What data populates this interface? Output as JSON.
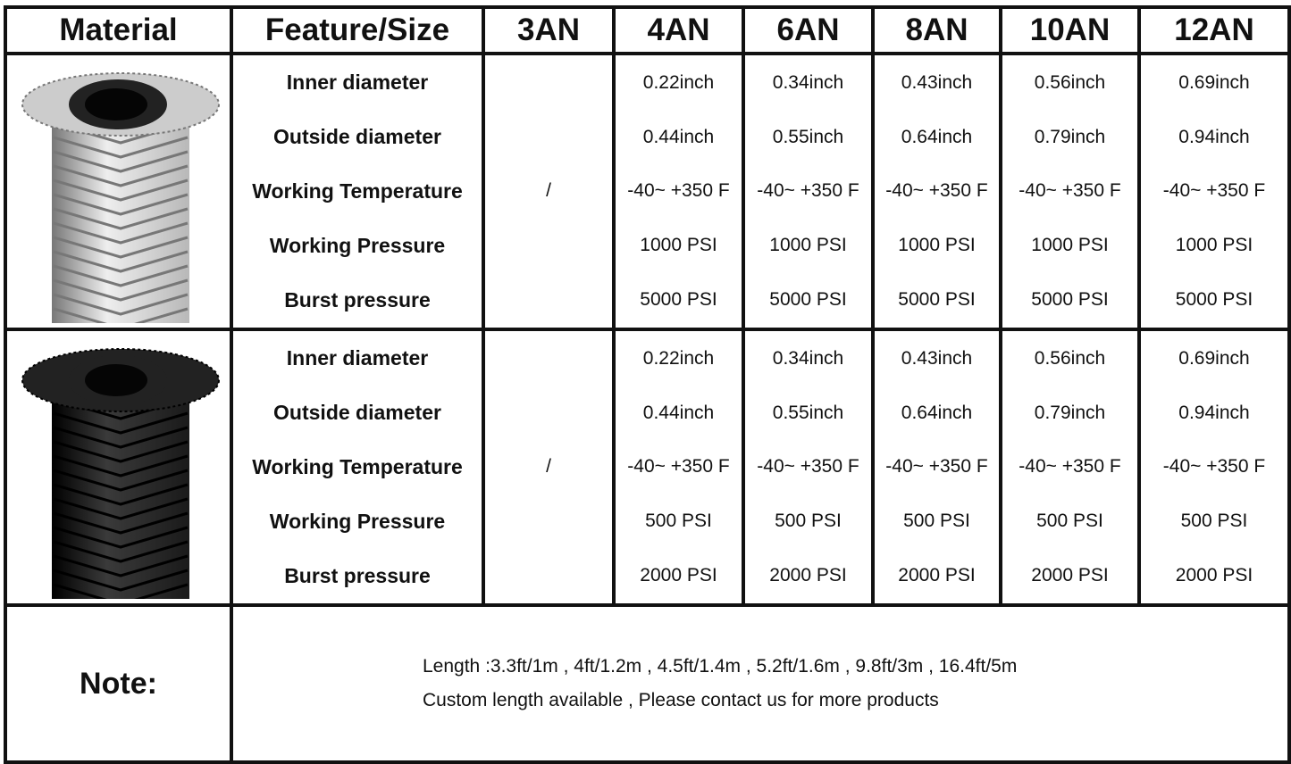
{
  "headers": [
    "Material",
    "Feature/Size",
    "3AN",
    "4AN",
    "6AN",
    "8AN",
    "10AN",
    "12AN"
  ],
  "sections": [
    {
      "material_image": "stainless-steel-braided-hose",
      "rows": [
        {
          "feature": "Inner diameter",
          "values": [
            "",
            "0.22inch",
            "0.34inch",
            "0.43inch",
            "0.56inch",
            "0.69inch"
          ]
        },
        {
          "feature": "Outside diameter",
          "values": [
            "",
            "0.44inch",
            "0.55inch",
            "0.64inch",
            "0.79inch",
            "0.94inch"
          ]
        },
        {
          "feature": "Working Temperature",
          "values": [
            "/",
            "-40~ +350 F",
            "-40~ +350 F",
            "-40~ +350 F",
            "-40~ +350 F",
            "-40~ +350 F"
          ]
        },
        {
          "feature": "Working Pressure",
          "values": [
            "",
            "1000 PSI",
            "1000 PSI",
            "1000 PSI",
            "1000 PSI",
            "1000 PSI"
          ]
        },
        {
          "feature": "Burst pressure",
          "values": [
            "",
            "5000 PSI",
            "5000 PSI",
            "5000 PSI",
            "5000 PSI",
            "5000 PSI"
          ]
        }
      ]
    },
    {
      "material_image": "black-nylon-braided-hose",
      "rows": [
        {
          "feature": "Inner diameter",
          "values": [
            "",
            "0.22inch",
            "0.34inch",
            "0.43inch",
            "0.56inch",
            "0.69inch"
          ]
        },
        {
          "feature": "Outside diameter",
          "values": [
            "",
            "0.44inch",
            "0.55inch",
            "0.64inch",
            "0.79inch",
            "0.94inch"
          ]
        },
        {
          "feature": "Working Temperature",
          "values": [
            "/",
            "-40~ +350 F",
            "-40~ +350 F",
            "-40~ +350 F",
            "-40~ +350 F",
            "-40~ +350 F"
          ]
        },
        {
          "feature": "Working Pressure",
          "values": [
            "",
            "500 PSI",
            "500 PSI",
            "500 PSI",
            "500 PSI",
            "500 PSI"
          ]
        },
        {
          "feature": "Burst pressure",
          "values": [
            "",
            "2000 PSI",
            "2000 PSI",
            "2000 PSI",
            "2000 PSI",
            "2000 PSI"
          ]
        }
      ]
    }
  ],
  "note": {
    "label": "Note:",
    "lines": [
      "Length :3.3ft/1m , 4ft/1.2m , 4.5ft/1.4m , 5.2ft/1.6m , 9.8ft/3m , 16.4ft/5m",
      "Custom length available , Please contact us for more products"
    ]
  }
}
